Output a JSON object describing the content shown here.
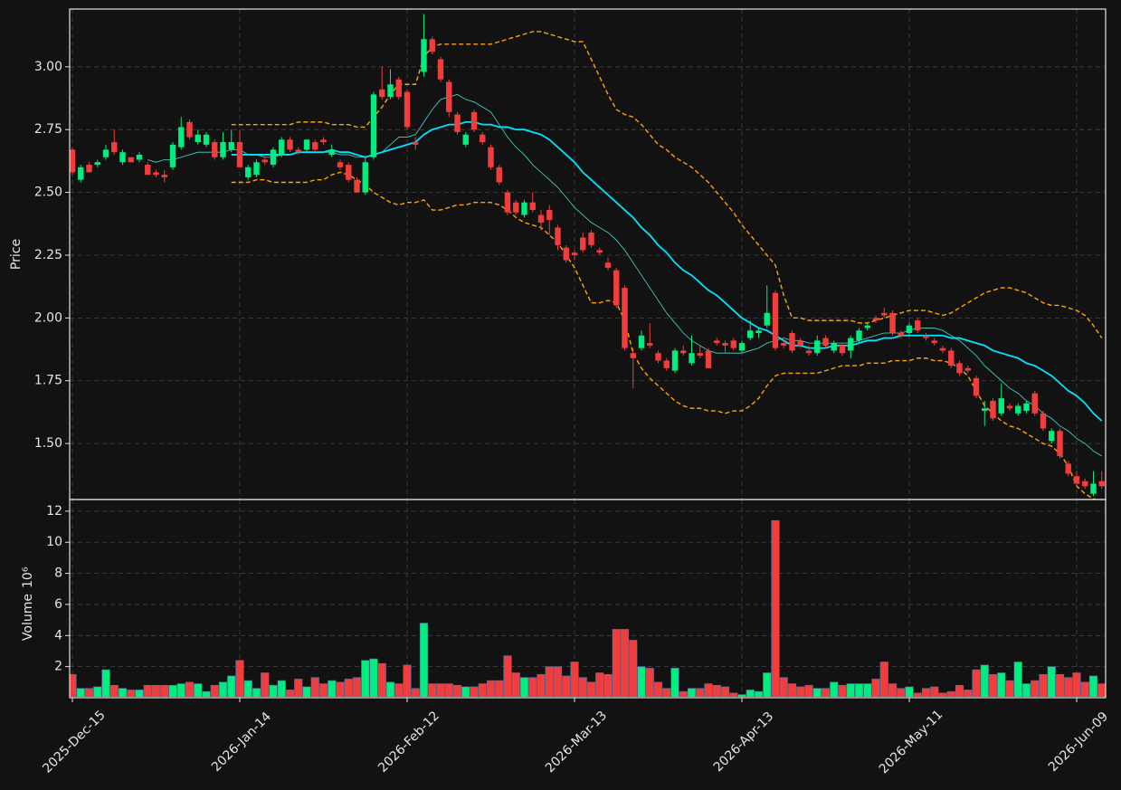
{
  "chart_data": {
    "type": "candlestick",
    "up_color": "#00ee80",
    "down_color": "#f23d3d",
    "grid": true,
    "ylabel": "Price",
    "ylim": [
      1.277,
      3.23
    ],
    "yticks": [
      {
        "value": 1.5,
        "label": "1.50"
      },
      1.75,
      {
        "value": 2,
        "label": "2.00"
      },
      2.25,
      {
        "value": 2.5,
        "label": "2.50"
      },
      2.75,
      {
        "value": 3,
        "label": "3.00"
      }
    ],
    "categories": [
      "2025-Dec-15",
      null,
      null,
      null,
      null,
      null,
      null,
      null,
      null,
      null,
      null,
      null,
      null,
      null,
      null,
      null,
      null,
      null,
      null,
      null,
      "2026-Jan-14",
      null,
      null,
      null,
      null,
      null,
      null,
      null,
      null,
      null,
      null,
      null,
      null,
      null,
      null,
      null,
      null,
      null,
      null,
      null,
      "2026-Feb-12",
      null,
      null,
      null,
      null,
      null,
      null,
      null,
      null,
      null,
      null,
      null,
      null,
      null,
      null,
      null,
      null,
      null,
      null,
      null,
      "2026-Mar-13",
      null,
      null,
      null,
      null,
      null,
      null,
      null,
      null,
      null,
      null,
      null,
      null,
      null,
      null,
      null,
      null,
      null,
      null,
      null,
      "2026-Apr-13",
      null,
      null,
      null,
      null,
      null,
      null,
      null,
      null,
      null,
      null,
      null,
      null,
      null,
      null,
      null,
      null,
      null,
      null,
      null,
      "2026-May-11",
      null,
      null,
      null,
      null,
      null,
      null,
      null,
      null,
      null,
      null,
      null,
      null,
      null,
      null,
      null,
      null,
      null,
      null,
      null,
      "2026-Jun-09",
      null,
      null,
      null
    ],
    "open": [
      2.67,
      2.55,
      2.61,
      2.61,
      2.64,
      2.7,
      2.62,
      2.64,
      2.63,
      2.61,
      2.58,
      2.57,
      2.6,
      2.68,
      2.78,
      2.7,
      2.69,
      2.7,
      2.64,
      2.67,
      2.7,
      2.56,
      2.57,
      2.63,
      2.61,
      2.65,
      2.71,
      2.67,
      2.67,
      2.7,
      2.71,
      2.65,
      2.62,
      2.61,
      2.55,
      2.5,
      2.64,
      2.91,
      2.88,
      2.95,
      2.9,
      2.7,
      2.98,
      3.11,
      3.03,
      2.94,
      2.81,
      2.69,
      2.82,
      2.73,
      2.68,
      2.6,
      2.5,
      2.46,
      2.41,
      2.46,
      2.41,
      2.43,
      2.36,
      2.28,
      2.26,
      2.32,
      2.34,
      2.27,
      2.22,
      2.19,
      2.12,
      1.86,
      1.88,
      1.9,
      1.86,
      1.83,
      1.79,
      1.87,
      1.82,
      1.86,
      1.87,
      1.91,
      1.9,
      1.91,
      1.87,
      1.92,
      1.94,
      1.97,
      2.1,
      1.9,
      1.94,
      1.91,
      1.87,
      1.86,
      1.92,
      1.87,
      1.89,
      1.87,
      1.91,
      1.96,
      2.0,
      2.02,
      2.02,
      1.94,
      1.94,
      1.99,
      1.93,
      1.91,
      1.88,
      1.87,
      1.82,
      1.8,
      1.76,
      1.63,
      1.67,
      1.62,
      1.65,
      1.62,
      1.63,
      1.7,
      1.62,
      1.51,
      1.55,
      1.42,
      1.37,
      1.35,
      1.3,
      1.35
    ],
    "high": [
      2.68,
      2.61,
      2.62,
      2.63,
      2.69,
      2.75,
      2.67,
      2.64,
      2.66,
      2.62,
      2.59,
      2.59,
      2.7,
      2.8,
      2.79,
      2.75,
      2.74,
      2.71,
      2.74,
      2.75,
      2.75,
      2.61,
      2.63,
      2.64,
      2.68,
      2.72,
      2.72,
      2.68,
      2.71,
      2.71,
      2.72,
      2.69,
      2.63,
      2.62,
      2.56,
      2.64,
      2.9,
      3.0,
      2.99,
      2.96,
      2.91,
      2.72,
      3.21,
      3.12,
      3.04,
      2.95,
      2.82,
      2.74,
      2.83,
      2.74,
      2.69,
      2.61,
      2.51,
      2.47,
      2.47,
      2.5,
      2.43,
      2.45,
      2.37,
      2.29,
      2.27,
      2.34,
      2.35,
      2.28,
      2.24,
      2.2,
      2.13,
      1.88,
      1.95,
      1.98,
      1.87,
      1.84,
      1.88,
      1.89,
      1.93,
      1.89,
      1.88,
      1.92,
      1.91,
      1.92,
      1.91,
      1.99,
      1.96,
      2.13,
      2.11,
      1.91,
      1.95,
      1.92,
      1.89,
      1.93,
      1.93,
      1.91,
      1.9,
      1.93,
      1.96,
      1.98,
      2.01,
      2.04,
      2.03,
      1.95,
      1.98,
      2.0,
      1.94,
      1.92,
      1.89,
      1.88,
      1.83,
      1.81,
      1.77,
      1.67,
      1.68,
      1.74,
      1.66,
      1.66,
      1.67,
      1.71,
      1.63,
      1.56,
      1.56,
      1.43,
      1.39,
      1.36,
      1.39,
      1.39
    ],
    "low": [
      2.57,
      2.54,
      2.58,
      2.6,
      2.63,
      2.65,
      2.61,
      2.62,
      2.62,
      2.57,
      2.56,
      2.54,
      2.59,
      2.67,
      2.71,
      2.69,
      2.68,
      2.63,
      2.63,
      2.66,
      2.6,
      2.55,
      2.56,
      2.61,
      2.6,
      2.64,
      2.66,
      2.65,
      2.66,
      2.66,
      2.69,
      2.64,
      2.59,
      2.54,
      2.5,
      2.49,
      2.63,
      2.87,
      2.87,
      2.87,
      2.75,
      2.67,
      2.96,
      3.05,
      2.94,
      2.8,
      2.73,
      2.68,
      2.74,
      2.69,
      2.59,
      2.53,
      2.41,
      2.41,
      2.4,
      2.42,
      2.35,
      2.33,
      2.27,
      2.22,
      2.23,
      2.26,
      2.28,
      2.25,
      2.19,
      2.04,
      1.87,
      1.72,
      1.87,
      1.88,
      1.82,
      1.79,
      1.78,
      1.85,
      1.81,
      1.84,
      1.8,
      1.89,
      1.86,
      1.87,
      1.86,
      1.91,
      1.92,
      1.96,
      1.87,
      1.88,
      1.86,
      1.88,
      1.85,
      1.85,
      1.88,
      1.86,
      1.85,
      1.84,
      1.9,
      1.95,
      1.98,
      2.0,
      1.93,
      1.92,
      1.93,
      1.94,
      1.91,
      1.89,
      1.86,
      1.8,
      1.77,
      1.78,
      1.68,
      1.57,
      1.59,
      1.61,
      1.63,
      1.61,
      1.62,
      1.61,
      1.55,
      1.5,
      1.44,
      1.37,
      1.33,
      1.32,
      1.29,
      1.32
    ],
    "close": [
      2.58,
      2.6,
      2.58,
      2.62,
      2.67,
      2.66,
      2.66,
      2.62,
      2.65,
      2.57,
      2.57,
      2.56,
      2.69,
      2.76,
      2.72,
      2.73,
      2.73,
      2.64,
      2.7,
      2.7,
      2.6,
      2.6,
      2.62,
      2.62,
      2.67,
      2.71,
      2.67,
      2.66,
      2.71,
      2.67,
      2.7,
      2.67,
      2.6,
      2.55,
      2.5,
      2.62,
      2.89,
      2.88,
      2.93,
      2.88,
      2.76,
      2.69,
      3.11,
      3.06,
      2.95,
      2.82,
      2.74,
      2.73,
      2.75,
      2.7,
      2.6,
      2.54,
      2.42,
      2.42,
      2.46,
      2.43,
      2.38,
      2.39,
      2.29,
      2.23,
      2.25,
      2.27,
      2.29,
      2.26,
      2.2,
      2.05,
      1.88,
      1.84,
      1.93,
      1.89,
      1.83,
      1.8,
      1.87,
      1.86,
      1.86,
      1.85,
      1.8,
      1.9,
      1.89,
      1.88,
      1.9,
      1.95,
      1.95,
      2.02,
      1.88,
      1.89,
      1.87,
      1.89,
      1.86,
      1.91,
      1.89,
      1.9,
      1.86,
      1.92,
      1.95,
      1.97,
      1.99,
      2.01,
      1.94,
      1.93,
      1.97,
      1.95,
      1.92,
      1.9,
      1.87,
      1.81,
      1.78,
      1.79,
      1.69,
      1.64,
      1.6,
      1.68,
      1.64,
      1.65,
      1.66,
      1.62,
      1.56,
      1.55,
      1.45,
      1.38,
      1.34,
      1.33,
      1.34,
      1.33
    ],
    "overlays": [
      {
        "color": "#ffa500",
        "dashed": true,
        "values": [
          null,
          null,
          null,
          null,
          null,
          null,
          null,
          null,
          null,
          null,
          null,
          null,
          null,
          null,
          null,
          null,
          null,
          null,
          null,
          2.77,
          2.77,
          2.77,
          2.77,
          2.77,
          2.77,
          2.77,
          2.77,
          2.78,
          2.78,
          2.78,
          2.78,
          2.77,
          2.77,
          2.77,
          2.76,
          2.76,
          2.8,
          2.84,
          2.89,
          2.93,
          2.93,
          2.93,
          3.04,
          3.08,
          3.09,
          3.09,
          3.09,
          3.09,
          3.09,
          3.09,
          3.09,
          3.1,
          3.11,
          3.12,
          3.13,
          3.14,
          3.14,
          3.13,
          3.12,
          3.11,
          3.1,
          3.1,
          3.03,
          2.96,
          2.89,
          2.83,
          2.81,
          2.8,
          2.77,
          2.73,
          2.69,
          2.67,
          2.64,
          2.62,
          2.6,
          2.57,
          2.54,
          2.5,
          2.46,
          2.42,
          2.37,
          2.33,
          2.29,
          2.25,
          2.21,
          2.09,
          2.0,
          2.0,
          1.99,
          1.99,
          1.99,
          1.99,
          1.99,
          1.99,
          1.98,
          1.98,
          1.99,
          2.0,
          2.01,
          2.02,
          2.03,
          2.03,
          2.03,
          2.02,
          2.01,
          2.02,
          2.04,
          2.06,
          2.08,
          2.1,
          2.11,
          2.12,
          2.12,
          2.11,
          2.1,
          2.08,
          2.06,
          2.05,
          2.05,
          2.04,
          2.03,
          2.01,
          1.97,
          1.92
        ]
      },
      {
        "color": "#ffa500",
        "dashed": true,
        "values": [
          null,
          null,
          null,
          null,
          null,
          null,
          null,
          null,
          null,
          null,
          null,
          null,
          null,
          null,
          null,
          null,
          null,
          null,
          null,
          2.54,
          2.54,
          2.54,
          2.55,
          2.55,
          2.54,
          2.54,
          2.54,
          2.54,
          2.54,
          2.55,
          2.55,
          2.57,
          2.58,
          2.57,
          2.55,
          2.53,
          2.5,
          2.48,
          2.46,
          2.45,
          2.46,
          2.46,
          2.47,
          2.43,
          2.43,
          2.44,
          2.45,
          2.45,
          2.46,
          2.46,
          2.46,
          2.45,
          2.43,
          2.4,
          2.38,
          2.37,
          2.36,
          2.33,
          2.3,
          2.25,
          2.2,
          2.13,
          2.06,
          2.06,
          2.07,
          2.06,
          1.99,
          1.86,
          1.8,
          1.76,
          1.73,
          1.7,
          1.67,
          1.65,
          1.64,
          1.64,
          1.63,
          1.63,
          1.62,
          1.63,
          1.63,
          1.65,
          1.68,
          1.73,
          1.77,
          1.78,
          1.78,
          1.78,
          1.78,
          1.78,
          1.79,
          1.8,
          1.81,
          1.81,
          1.81,
          1.82,
          1.82,
          1.82,
          1.83,
          1.83,
          1.83,
          1.84,
          1.84,
          1.83,
          1.83,
          1.82,
          1.8,
          1.77,
          1.71,
          1.65,
          1.62,
          1.59,
          1.57,
          1.56,
          1.54,
          1.52,
          1.5,
          1.49,
          1.46,
          1.41,
          1.33,
          1.3,
          1.28,
          1.27
        ]
      },
      {
        "color": "#40e0d0",
        "values": [
          null,
          null,
          null,
          null,
          null,
          null,
          null,
          null,
          null,
          2.63,
          2.62,
          2.63,
          2.63,
          2.64,
          2.65,
          2.66,
          2.66,
          2.66,
          2.66,
          2.67,
          2.67,
          2.65,
          2.65,
          2.64,
          2.64,
          2.65,
          2.65,
          2.66,
          2.66,
          2.66,
          2.66,
          2.66,
          2.65,
          2.65,
          2.64,
          2.64,
          2.65,
          2.66,
          2.69,
          2.72,
          2.72,
          2.73,
          2.78,
          2.83,
          2.87,
          2.88,
          2.89,
          2.87,
          2.86,
          2.84,
          2.82,
          2.77,
          2.72,
          2.68,
          2.65,
          2.61,
          2.58,
          2.55,
          2.52,
          2.48,
          2.44,
          2.41,
          2.38,
          2.36,
          2.34,
          2.31,
          2.27,
          2.22,
          2.17,
          2.12,
          2.07,
          2.02,
          1.98,
          1.94,
          1.91,
          1.89,
          1.87,
          1.86,
          1.86,
          1.86,
          1.86,
          1.87,
          1.88,
          1.9,
          1.91,
          1.92,
          1.91,
          1.91,
          1.9,
          1.9,
          1.9,
          1.9,
          1.9,
          1.9,
          1.91,
          1.92,
          1.93,
          1.94,
          1.94,
          1.94,
          1.95,
          1.96,
          1.96,
          1.96,
          1.95,
          1.93,
          1.91,
          1.88,
          1.85,
          1.81,
          1.78,
          1.75,
          1.72,
          1.7,
          1.67,
          1.65,
          1.62,
          1.6,
          1.57,
          1.55,
          1.52,
          1.5,
          1.47,
          1.45
        ]
      },
      {
        "color": "#00e5ff",
        "values": [
          null,
          null,
          null,
          null,
          null,
          null,
          null,
          null,
          null,
          null,
          null,
          null,
          null,
          null,
          null,
          null,
          null,
          null,
          null,
          2.65,
          2.65,
          2.65,
          2.65,
          2.65,
          2.65,
          2.65,
          2.65,
          2.66,
          2.66,
          2.66,
          2.66,
          2.67,
          2.66,
          2.66,
          2.65,
          2.64,
          2.65,
          2.66,
          2.67,
          2.68,
          2.69,
          2.7,
          2.73,
          2.75,
          2.76,
          2.77,
          2.77,
          2.78,
          2.78,
          2.77,
          2.77,
          2.76,
          2.76,
          2.75,
          2.75,
          2.74,
          2.73,
          2.71,
          2.68,
          2.65,
          2.62,
          2.58,
          2.55,
          2.52,
          2.49,
          2.46,
          2.43,
          2.4,
          2.36,
          2.33,
          2.29,
          2.26,
          2.22,
          2.19,
          2.17,
          2.14,
          2.11,
          2.09,
          2.06,
          2.03,
          2.0,
          1.98,
          1.96,
          1.95,
          1.93,
          1.91,
          1.89,
          1.89,
          1.88,
          1.88,
          1.88,
          1.89,
          1.89,
          1.89,
          1.9,
          1.91,
          1.91,
          1.92,
          1.92,
          1.93,
          1.93,
          1.93,
          1.93,
          1.93,
          1.93,
          1.92,
          1.92,
          1.91,
          1.9,
          1.89,
          1.87,
          1.86,
          1.85,
          1.84,
          1.82,
          1.81,
          1.79,
          1.77,
          1.74,
          1.71,
          1.69,
          1.66,
          1.62,
          1.59
        ]
      }
    ],
    "volume": {
      "label": "Volume",
      "exponent": "10⁶",
      "ylim": [
        0,
        12.75
      ],
      "yticks": [
        2,
        4,
        6,
        8,
        10,
        12
      ],
      "values": [
        1.5,
        0.6,
        0.6,
        0.7,
        1.8,
        0.8,
        0.6,
        0.5,
        0.5,
        0.8,
        0.8,
        0.8,
        0.8,
        0.9,
        1.0,
        0.9,
        0.4,
        0.8,
        1.0,
        1.4,
        2.4,
        1.1,
        0.6,
        1.6,
        0.8,
        1.1,
        0.5,
        1.2,
        0.7,
        1.3,
        0.9,
        1.1,
        1.0,
        1.2,
        1.3,
        2.4,
        2.5,
        2.2,
        1.0,
        0.9,
        2.1,
        0.6,
        4.8,
        0.9,
        0.9,
        0.9,
        0.8,
        0.7,
        0.7,
        0.9,
        1.1,
        1.1,
        2.7,
        1.6,
        1.3,
        1.3,
        1.5,
        2.0,
        2.0,
        1.4,
        2.3,
        1.3,
        1.0,
        1.6,
        1.5,
        4.4,
        4.4,
        3.7,
        2.0,
        1.9,
        1.0,
        0.6,
        1.9,
        0.4,
        0.6,
        0.6,
        0.9,
        0.8,
        0.7,
        0.3,
        0.2,
        0.5,
        0.4,
        1.6,
        11.4,
        1.3,
        0.9,
        0.7,
        0.8,
        0.6,
        0.6,
        1.0,
        0.8,
        0.9,
        0.9,
        0.9,
        1.2,
        2.3,
        0.9,
        0.6,
        0.7,
        0.3,
        0.6,
        0.7,
        0.3,
        0.4,
        0.8,
        0.5,
        1.8,
        2.1,
        1.5,
        1.6,
        1.1,
        2.3,
        0.9,
        1.1,
        1.5,
        2.0,
        1.5,
        1.3,
        1.6,
        1.0,
        1.4,
        0.9
      ]
    }
  }
}
